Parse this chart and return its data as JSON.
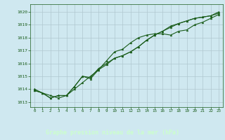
{
  "title": "Graphe pression niveau de la mer (hPa)",
  "bg_color": "#cfe8f0",
  "plot_bg": "#cfe8f0",
  "grid_color": "#b0c8d0",
  "line_color": "#1a5c1a",
  "title_bg": "#2a6b2a",
  "title_fg": "#ccffcc",
  "xlim_min": -0.5,
  "xlim_max": 23.5,
  "ylim_min": 1012.6,
  "ylim_max": 1020.6,
  "yticks": [
    1013,
    1014,
    1015,
    1016,
    1017,
    1018,
    1019,
    1020
  ],
  "xticks": [
    0,
    1,
    2,
    3,
    4,
    5,
    6,
    7,
    8,
    9,
    10,
    11,
    12,
    13,
    14,
    15,
    16,
    17,
    18,
    19,
    20,
    21,
    22,
    23
  ],
  "series1": [
    1013.9,
    1013.7,
    1013.5,
    1013.3,
    1013.5,
    1014.0,
    1014.5,
    1015.0,
    1015.5,
    1016.2,
    1016.9,
    1017.1,
    1017.6,
    1018.0,
    1018.2,
    1018.3,
    1018.3,
    1018.2,
    1018.5,
    1018.6,
    1019.0,
    1019.2,
    1019.5,
    1019.8
  ],
  "series2": [
    1014.0,
    1013.7,
    1013.3,
    1013.5,
    1013.5,
    1014.2,
    1015.0,
    1014.8,
    1015.5,
    1015.9,
    1016.4,
    1016.6,
    1016.9,
    1017.3,
    1017.8,
    1018.2,
    1018.5,
    1018.9,
    1019.1,
    1019.3,
    1019.5,
    1019.6,
    1019.7,
    1019.9
  ],
  "series3": [
    1013.9,
    1013.7,
    1013.3,
    1013.5,
    1013.5,
    1014.2,
    1015.0,
    1014.9,
    1015.6,
    1016.0,
    1016.4,
    1016.6,
    1016.9,
    1017.3,
    1017.8,
    1018.2,
    1018.5,
    1018.8,
    1019.1,
    1019.3,
    1019.5,
    1019.6,
    1019.7,
    1020.0
  ]
}
